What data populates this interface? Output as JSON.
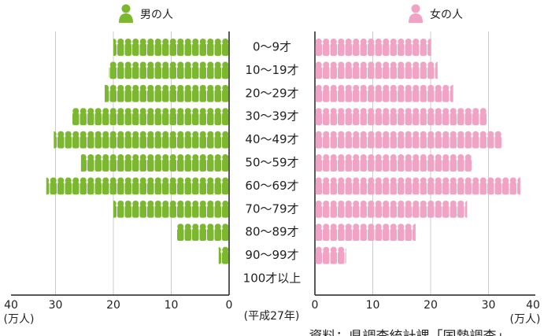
{
  "chart_data": {
    "type": "pyramid",
    "categories": [
      "0～9才",
      "10～19才",
      "20～29才",
      "30～39才",
      "40～49才",
      "50～59才",
      "60～69才",
      "70～79才",
      "80～89才",
      "90～99才",
      "100才以上"
    ],
    "series": [
      {
        "name": "男の人",
        "color": "#7cb82f",
        "values": [
          20.0,
          20.8,
          21.5,
          27.1,
          30.3,
          25.6,
          31.6,
          20.0,
          9.1,
          1.8,
          0
        ]
      },
      {
        "name": "女の人",
        "color": "#f0a3c4",
        "values": [
          20.1,
          21.2,
          23.9,
          29.7,
          32.4,
          27.2,
          35.5,
          26.3,
          17.4,
          5.4,
          0
        ]
      }
    ],
    "xlim": [
      0,
      40
    ],
    "xticks": [
      0,
      10,
      20,
      30,
      40
    ],
    "grid": true,
    "x_unit": "(万人)",
    "note": "(平成27年)",
    "source": "資料：県調査統計課「国勢調査」"
  }
}
